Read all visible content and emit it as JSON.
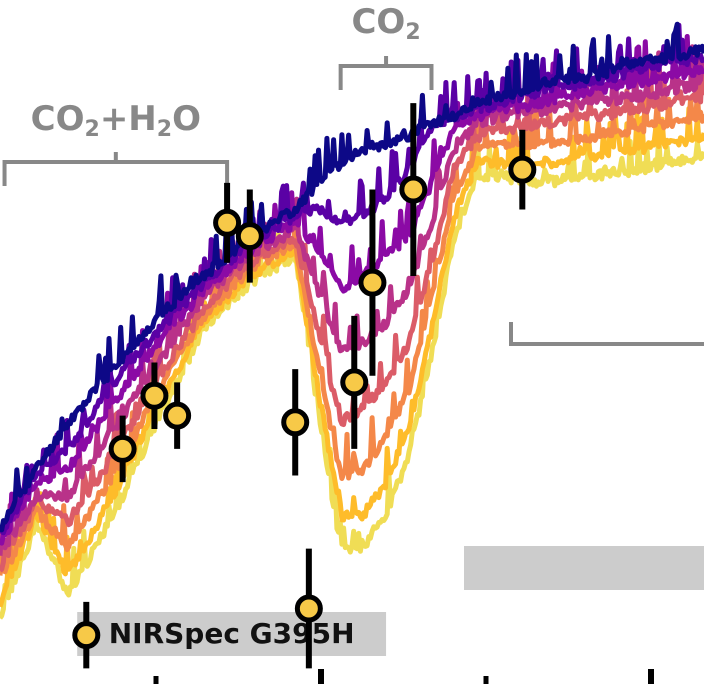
{
  "chart_data": {
    "type": "line",
    "title": "",
    "xlabel": "",
    "ylabel": "",
    "x_unit": "micron",
    "xlim": [
      2.7,
      4.25
    ],
    "ylim": [
      0.0,
      1.0
    ],
    "grid": false,
    "legend": "none",
    "colormap": [
      "#0d0887",
      "#5a01a5",
      "#8b0aa5",
      "#b93289",
      "#db5c68",
      "#f48849",
      "#febc2a",
      "#f0dd55"
    ],
    "model_spectra": [
      {
        "metallicity_index": 0,
        "color": "#0d0887",
        "x": [
          2.7,
          2.78,
          2.85,
          2.95,
          3.05,
          3.15,
          3.25,
          3.35,
          3.4,
          3.45,
          3.5,
          3.55,
          3.6,
          3.65,
          3.7,
          3.75,
          3.8,
          3.9,
          4.0,
          4.1,
          4.25
        ],
        "y": [
          0.22,
          0.31,
          0.38,
          0.46,
          0.54,
          0.6,
          0.66,
          0.7,
          0.74,
          0.77,
          0.79,
          0.8,
          0.81,
          0.83,
          0.84,
          0.86,
          0.87,
          0.89,
          0.9,
          0.92,
          0.94
        ]
      },
      {
        "metallicity_index": 1,
        "color": "#5a01a5",
        "x": [
          2.7,
          2.78,
          2.85,
          2.95,
          3.05,
          3.15,
          3.25,
          3.35,
          3.4,
          3.45,
          3.5,
          3.55,
          3.6,
          3.65,
          3.7,
          3.75,
          3.8,
          3.9,
          4.0,
          4.1,
          4.25
        ],
        "y": [
          0.21,
          0.3,
          0.34,
          0.44,
          0.52,
          0.59,
          0.65,
          0.69,
          0.7,
          0.68,
          0.69,
          0.72,
          0.76,
          0.82,
          0.84,
          0.85,
          0.86,
          0.88,
          0.89,
          0.91,
          0.93
        ]
      },
      {
        "metallicity_index": 2,
        "color": "#8b0aa5",
        "x": [
          2.7,
          2.78,
          2.85,
          2.95,
          3.05,
          3.15,
          3.25,
          3.35,
          3.4,
          3.45,
          3.5,
          3.55,
          3.6,
          3.65,
          3.7,
          3.75,
          3.8,
          3.9,
          4.0,
          4.1,
          4.25
        ],
        "y": [
          0.2,
          0.29,
          0.31,
          0.41,
          0.5,
          0.58,
          0.64,
          0.68,
          0.64,
          0.58,
          0.6,
          0.63,
          0.66,
          0.74,
          0.82,
          0.84,
          0.85,
          0.86,
          0.88,
          0.89,
          0.91
        ]
      },
      {
        "metallicity_index": 3,
        "color": "#b93289",
        "x": [
          2.7,
          2.78,
          2.85,
          2.95,
          3.05,
          3.15,
          3.25,
          3.35,
          3.4,
          3.45,
          3.5,
          3.55,
          3.6,
          3.65,
          3.7,
          3.75,
          3.8,
          3.9,
          4.0,
          4.1,
          4.25
        ],
        "y": [
          0.18,
          0.27,
          0.27,
          0.37,
          0.47,
          0.57,
          0.63,
          0.67,
          0.58,
          0.49,
          0.5,
          0.53,
          0.58,
          0.68,
          0.79,
          0.83,
          0.84,
          0.85,
          0.86,
          0.87,
          0.89
        ]
      },
      {
        "metallicity_index": 4,
        "color": "#db5c68",
        "x": [
          2.7,
          2.78,
          2.85,
          2.95,
          3.05,
          3.15,
          3.25,
          3.35,
          3.4,
          3.45,
          3.5,
          3.55,
          3.6,
          3.65,
          3.7,
          3.75,
          3.8,
          3.9,
          4.0,
          4.1,
          4.25
        ],
        "y": [
          0.16,
          0.26,
          0.23,
          0.33,
          0.45,
          0.55,
          0.62,
          0.66,
          0.52,
          0.38,
          0.4,
          0.44,
          0.5,
          0.62,
          0.76,
          0.81,
          0.82,
          0.83,
          0.84,
          0.85,
          0.87
        ]
      },
      {
        "metallicity_index": 5,
        "color": "#f48849",
        "x": [
          2.7,
          2.78,
          2.85,
          2.95,
          3.05,
          3.15,
          3.25,
          3.35,
          3.4,
          3.45,
          3.5,
          3.55,
          3.6,
          3.65,
          3.7,
          3.75,
          3.8,
          3.9,
          4.0,
          4.1,
          4.25
        ],
        "y": [
          0.14,
          0.25,
          0.19,
          0.3,
          0.43,
          0.54,
          0.61,
          0.65,
          0.47,
          0.3,
          0.31,
          0.36,
          0.43,
          0.57,
          0.72,
          0.79,
          0.8,
          0.8,
          0.81,
          0.82,
          0.84
        ]
      },
      {
        "metallicity_index": 6,
        "color": "#febc2a",
        "x": [
          2.7,
          2.78,
          2.85,
          2.95,
          3.05,
          3.15,
          3.25,
          3.35,
          3.4,
          3.45,
          3.5,
          3.55,
          3.6,
          3.65,
          3.7,
          3.75,
          3.8,
          3.9,
          4.0,
          4.1,
          4.25
        ],
        "y": [
          0.11,
          0.24,
          0.15,
          0.27,
          0.41,
          0.53,
          0.6,
          0.64,
          0.43,
          0.24,
          0.24,
          0.29,
          0.37,
          0.52,
          0.69,
          0.77,
          0.77,
          0.77,
          0.78,
          0.79,
          0.81
        ]
      },
      {
        "metallicity_index": 7,
        "color": "#f0dd55",
        "x": [
          2.7,
          2.78,
          2.85,
          2.95,
          3.05,
          3.15,
          3.25,
          3.35,
          3.4,
          3.45,
          3.5,
          3.55,
          3.6,
          3.65,
          3.7,
          3.75,
          3.8,
          3.9,
          4.0,
          4.1,
          4.25
        ],
        "y": [
          0.08,
          0.23,
          0.12,
          0.24,
          0.39,
          0.52,
          0.59,
          0.63,
          0.4,
          0.19,
          0.19,
          0.24,
          0.33,
          0.48,
          0.66,
          0.75,
          0.75,
          0.74,
          0.75,
          0.76,
          0.78
        ]
      }
    ],
    "observed": {
      "name": "",
      "marker_color": "#f7c948",
      "x": [
        2.89,
        2.97,
        3.04,
        3.09,
        3.2,
        3.25,
        3.35,
        3.38,
        3.48,
        3.52,
        3.61
      ],
      "y": [
        0.06,
        0.34,
        0.42,
        0.39,
        0.68,
        0.66,
        0.38,
        0.1,
        0.44,
        0.59,
        0.73
      ],
      "err": [
        0.05,
        0.05,
        0.05,
        0.05,
        0.06,
        0.07,
        0.08,
        0.09,
        0.1,
        0.14,
        0.13
      ]
    },
    "secondary_points": {
      "x": [
        3.85
      ],
      "y": [
        0.76
      ],
      "err": [
        0.06
      ]
    },
    "bracket_labels": [
      {
        "id": "co2-h2o",
        "text_parts": [
          "CO",
          "2",
          "+H",
          "2",
          "O"
        ],
        "x_start": 2.71,
        "x_end": 3.2
      },
      {
        "id": "co2",
        "text_parts": [
          "CO",
          "2"
        ],
        "x_start": 3.45,
        "x_end": 3.65
      }
    ],
    "instrument_bands": [
      {
        "id": "nirspec-g395h",
        "label": "NIRSpec G395H",
        "x_start": 2.87,
        "x_end": 3.55
      }
    ]
  }
}
